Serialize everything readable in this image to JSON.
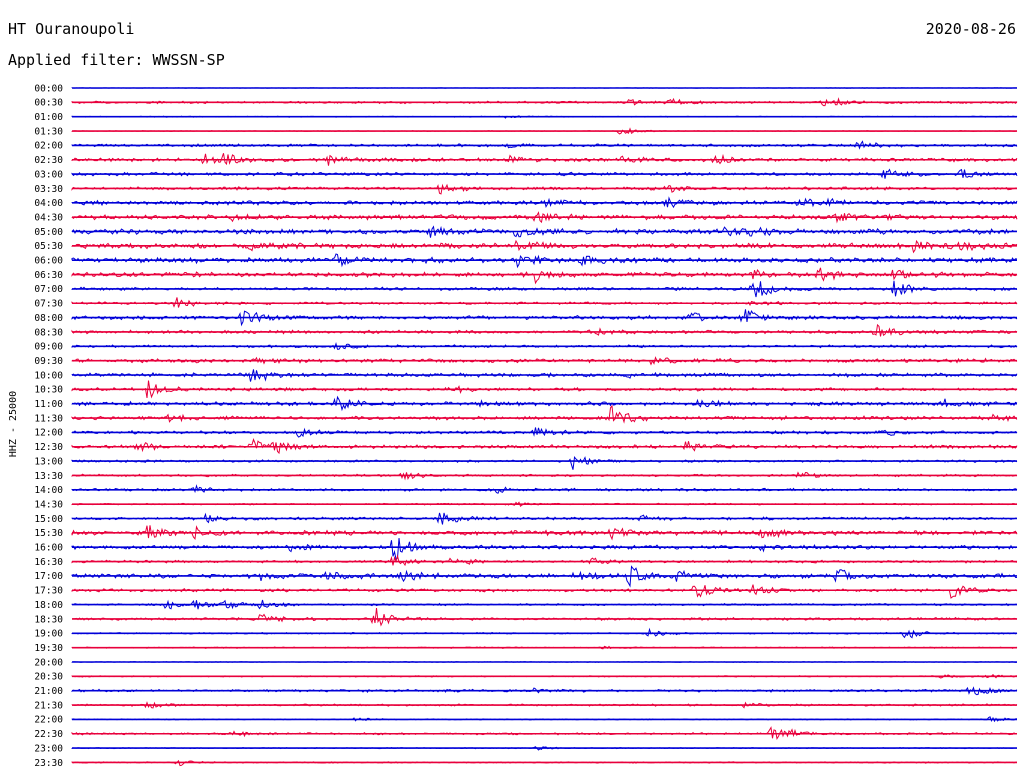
{
  "header": {
    "station": "HT Ouranoupoli",
    "date": "2020-08-26",
    "filter": "Applied filter: WWSSN-SP"
  },
  "colors": {
    "trace_a": "#0000d8",
    "trace_b": "#e8003c",
    "background": "#ffffff",
    "text": "#000000"
  },
  "chart_data": {
    "type": "line",
    "title": "",
    "ylabel": "HHZ - 25000",
    "xlabel": "",
    "rows": [
      {
        "label": "00:00",
        "color": "trace_a",
        "noise": 0.2,
        "events": []
      },
      {
        "label": "00:30",
        "color": "trace_b",
        "noise": 0.9,
        "events": [
          [
            0.12,
            0.6
          ],
          [
            0.59,
            2.5
          ],
          [
            0.63,
            4.0
          ],
          [
            0.79,
            3.5
          ],
          [
            0.81,
            2.5
          ]
        ]
      },
      {
        "label": "01:00",
        "color": "trace_a",
        "noise": 0.4,
        "events": [
          [
            0.46,
            1.5
          ]
        ]
      },
      {
        "label": "01:30",
        "color": "trace_b",
        "noise": 0.3,
        "events": [
          [
            0.58,
            4.5
          ]
        ]
      },
      {
        "label": "02:00",
        "color": "trace_a",
        "noise": 1.1,
        "events": [
          [
            0.83,
            4.5
          ],
          [
            0.46,
            1.5
          ]
        ]
      },
      {
        "label": "02:30",
        "color": "trace_b",
        "noise": 1.4,
        "events": [
          [
            0.14,
            5.0
          ],
          [
            0.16,
            5.0
          ],
          [
            0.27,
            4.5
          ],
          [
            0.46,
            3.0
          ],
          [
            0.58,
            4.0
          ],
          [
            0.68,
            4.5
          ]
        ]
      },
      {
        "label": "03:00",
        "color": "trace_a",
        "noise": 1.3,
        "events": [
          [
            0.86,
            5.5
          ],
          [
            0.94,
            6.0
          ]
        ]
      },
      {
        "label": "03:30",
        "color": "trace_b",
        "noise": 1.2,
        "events": [
          [
            0.39,
            4.5
          ],
          [
            0.63,
            3.5
          ]
        ]
      },
      {
        "label": "04:00",
        "color": "trace_a",
        "noise": 1.6,
        "events": [
          [
            0.5,
            3.5
          ],
          [
            0.63,
            4.0
          ],
          [
            0.77,
            4.0
          ],
          [
            0.8,
            3.5
          ]
        ]
      },
      {
        "label": "04:30",
        "color": "trace_b",
        "noise": 1.8,
        "events": [
          [
            0.17,
            5.0
          ],
          [
            0.49,
            6.5
          ],
          [
            0.81,
            6.0
          ]
        ]
      },
      {
        "label": "05:00",
        "color": "trace_a",
        "noise": 2.0,
        "events": [
          [
            0.38,
            4.5
          ],
          [
            0.47,
            5.5
          ],
          [
            0.69,
            5.0
          ],
          [
            0.72,
            4.5
          ]
        ]
      },
      {
        "label": "05:30",
        "color": "trace_b",
        "noise": 2.0,
        "events": [
          [
            0.19,
            3.5
          ],
          [
            0.47,
            4.5
          ],
          [
            0.89,
            5.0
          ],
          [
            0.94,
            5.0
          ]
        ]
      },
      {
        "label": "06:00",
        "color": "trace_a",
        "noise": 2.0,
        "events": [
          [
            0.28,
            7.0
          ],
          [
            0.47,
            8.0
          ],
          [
            0.54,
            3.5
          ]
        ]
      },
      {
        "label": "06:30",
        "color": "trace_b",
        "noise": 1.8,
        "events": [
          [
            0.49,
            7.0
          ],
          [
            0.72,
            6.0
          ],
          [
            0.79,
            6.0
          ],
          [
            0.87,
            4.5
          ]
        ]
      },
      {
        "label": "07:00",
        "color": "trace_a",
        "noise": 1.2,
        "events": [
          [
            0.72,
            13.0
          ],
          [
            0.87,
            8.5
          ]
        ]
      },
      {
        "label": "07:30",
        "color": "trace_b",
        "noise": 1.0,
        "events": [
          [
            0.11,
            5.5
          ],
          [
            0.72,
            3.0
          ]
        ]
      },
      {
        "label": "08:00",
        "color": "trace_a",
        "noise": 1.5,
        "events": [
          [
            0.18,
            9.0
          ],
          [
            0.65,
            7.0
          ],
          [
            0.71,
            9.5
          ]
        ]
      },
      {
        "label": "08:30",
        "color": "trace_b",
        "noise": 1.3,
        "events": [
          [
            0.55,
            3.5
          ],
          [
            0.85,
            7.5
          ]
        ]
      },
      {
        "label": "09:00",
        "color": "trace_a",
        "noise": 1.0,
        "events": [
          [
            0.28,
            4.0
          ]
        ]
      },
      {
        "label": "09:30",
        "color": "trace_b",
        "noise": 1.5,
        "events": [
          [
            0.19,
            4.0
          ],
          [
            0.61,
            4.5
          ]
        ]
      },
      {
        "label": "10:00",
        "color": "trace_a",
        "noise": 1.5,
        "events": [
          [
            0.19,
            8.0
          ],
          [
            0.59,
            3.0
          ]
        ]
      },
      {
        "label": "10:30",
        "color": "trace_b",
        "noise": 1.2,
        "events": [
          [
            0.08,
            9.0
          ],
          [
            0.4,
            4.0
          ]
        ]
      },
      {
        "label": "11:00",
        "color": "trace_a",
        "noise": 1.5,
        "events": [
          [
            0.28,
            7.0
          ],
          [
            0.43,
            3.5
          ],
          [
            0.66,
            4.5
          ],
          [
            0.92,
            4.0
          ]
        ]
      },
      {
        "label": "11:30",
        "color": "trace_b",
        "noise": 1.4,
        "events": [
          [
            0.1,
            4.5
          ],
          [
            0.57,
            14.0
          ],
          [
            0.97,
            3.5
          ]
        ]
      },
      {
        "label": "12:00",
        "color": "trace_a",
        "noise": 1.2,
        "events": [
          [
            0.24,
            4.5
          ],
          [
            0.49,
            4.0
          ],
          [
            0.86,
            3.0
          ]
        ]
      },
      {
        "label": "12:30",
        "color": "trace_b",
        "noise": 1.4,
        "events": [
          [
            0.07,
            4.5
          ],
          [
            0.19,
            8.0
          ],
          [
            0.21,
            7.0
          ],
          [
            0.65,
            5.0
          ]
        ]
      },
      {
        "label": "13:00",
        "color": "trace_a",
        "noise": 0.9,
        "events": [
          [
            0.53,
            8.5
          ]
        ]
      },
      {
        "label": "13:30",
        "color": "trace_b",
        "noise": 0.9,
        "events": [
          [
            0.35,
            4.0
          ],
          [
            0.77,
            3.5
          ]
        ]
      },
      {
        "label": "14:00",
        "color": "trace_a",
        "noise": 1.0,
        "events": [
          [
            0.13,
            3.5
          ],
          [
            0.45,
            3.0
          ]
        ]
      },
      {
        "label": "14:30",
        "color": "trace_b",
        "noise": 0.6,
        "events": [
          [
            0.47,
            2.0
          ]
        ]
      },
      {
        "label": "15:00",
        "color": "trace_a",
        "noise": 1.1,
        "events": [
          [
            0.14,
            3.5
          ],
          [
            0.39,
            10.0
          ],
          [
            0.6,
            3.5
          ]
        ]
      },
      {
        "label": "15:30",
        "color": "trace_b",
        "noise": 1.7,
        "events": [
          [
            0.08,
            7.0
          ],
          [
            0.13,
            5.0
          ],
          [
            0.57,
            6.5
          ],
          [
            0.73,
            5.0
          ]
        ]
      },
      {
        "label": "16:00",
        "color": "trace_a",
        "noise": 1.5,
        "events": [
          [
            0.23,
            4.0
          ],
          [
            0.34,
            14.0
          ],
          [
            0.73,
            4.0
          ]
        ]
      },
      {
        "label": "16:30",
        "color": "trace_b",
        "noise": 1.0,
        "events": [
          [
            0.34,
            6.0
          ],
          [
            0.4,
            5.5
          ],
          [
            0.55,
            3.5
          ]
        ]
      },
      {
        "label": "17:00",
        "color": "trace_a",
        "noise": 1.7,
        "events": [
          [
            0.2,
            4.0
          ],
          [
            0.27,
            7.0
          ],
          [
            0.35,
            4.5
          ],
          [
            0.53,
            5.0
          ],
          [
            0.59,
            12.0
          ],
          [
            0.64,
            5.0
          ],
          [
            0.81,
            8.0
          ]
        ]
      },
      {
        "label": "17:30",
        "color": "trace_b",
        "noise": 1.2,
        "events": [
          [
            0.66,
            9.0
          ],
          [
            0.72,
            6.0
          ],
          [
            0.93,
            8.5
          ]
        ]
      },
      {
        "label": "18:00",
        "color": "trace_a",
        "noise": 0.8,
        "events": [
          [
            0.1,
            5.0
          ],
          [
            0.13,
            4.5
          ],
          [
            0.16,
            4.0
          ],
          [
            0.2,
            5.0
          ]
        ]
      },
      {
        "label": "18:30",
        "color": "trace_b",
        "noise": 1.0,
        "events": [
          [
            0.2,
            7.0
          ],
          [
            0.32,
            12.0
          ]
        ]
      },
      {
        "label": "19:00",
        "color": "trace_a",
        "noise": 0.6,
        "events": [
          [
            0.61,
            4.0
          ],
          [
            0.88,
            8.0
          ]
        ]
      },
      {
        "label": "19:30",
        "color": "trace_b",
        "noise": 0.5,
        "events": [
          [
            0.56,
            1.5
          ]
        ]
      },
      {
        "label": "20:00",
        "color": "trace_a",
        "noise": 0.3,
        "events": []
      },
      {
        "label": "20:30",
        "color": "trace_b",
        "noise": 0.5,
        "events": [
          [
            0.92,
            2.0
          ],
          [
            0.97,
            2.5
          ]
        ]
      },
      {
        "label": "21:00",
        "color": "trace_a",
        "noise": 1.0,
        "events": [
          [
            0.49,
            2.5
          ],
          [
            0.95,
            6.0
          ]
        ]
      },
      {
        "label": "21:30",
        "color": "trace_b",
        "noise": 0.8,
        "events": [
          [
            0.08,
            3.0
          ],
          [
            0.71,
            2.0
          ]
        ]
      },
      {
        "label": "22:00",
        "color": "trace_a",
        "noise": 0.4,
        "events": [
          [
            0.3,
            2.0
          ],
          [
            0.97,
            3.0
          ]
        ]
      },
      {
        "label": "22:30",
        "color": "trace_b",
        "noise": 0.8,
        "events": [
          [
            0.17,
            2.5
          ],
          [
            0.74,
            7.0
          ],
          [
            0.76,
            3.0
          ]
        ]
      },
      {
        "label": "23:00",
        "color": "trace_a",
        "noise": 0.4,
        "events": [
          [
            0.49,
            2.0
          ]
        ]
      },
      {
        "label": "23:30",
        "color": "trace_b",
        "noise": 0.5,
        "events": [
          [
            0.11,
            3.5
          ]
        ]
      }
    ]
  }
}
